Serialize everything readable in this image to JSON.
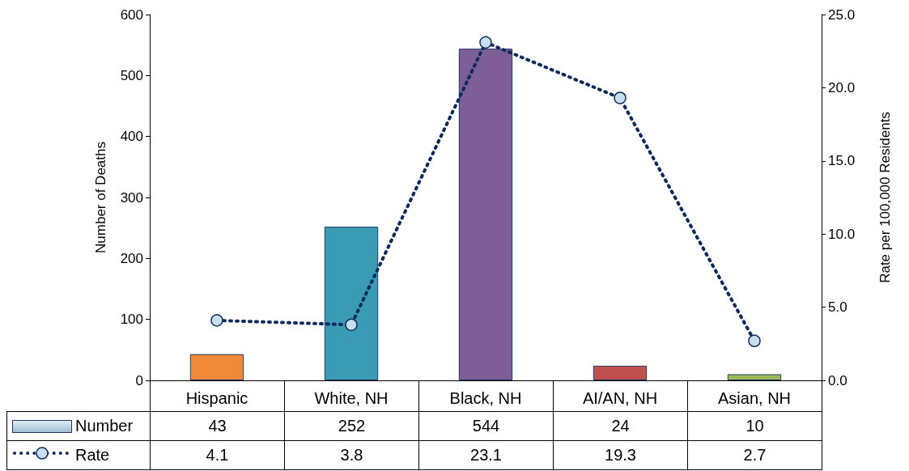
{
  "chart_data": {
    "type": "bar",
    "ylabel": "Number of Deaths",
    "y2label": "Rate per 100,000 Residents",
    "categories": [
      "Hispanic",
      "White, NH",
      "Black, NH",
      "AI/AN, NH",
      "Asian, NH"
    ],
    "series": [
      {
        "name": "Number",
        "colors": [
          "#f08a3a",
          "#3a9bb5",
          "#7d5e96",
          "#c0504d",
          "#9bbb59"
        ],
        "values": [
          43,
          252,
          544,
          24,
          10
        ]
      },
      {
        "name": "Rate",
        "type": "line",
        "axis": "y2",
        "color": "#0d2a5c",
        "values": [
          4.1,
          3.8,
          23.1,
          19.3,
          2.7
        ]
      }
    ],
    "ylim": [
      0,
      600
    ],
    "yticks": [
      0,
      100,
      200,
      300,
      400,
      500,
      600
    ],
    "y2lim": [
      0,
      25
    ],
    "y2ticks": [
      {
        "value": 0,
        "label": "0.0"
      },
      {
        "value": 5,
        "label": "5.0"
      },
      {
        "value": 10,
        "label": "10.0"
      },
      {
        "value": 15,
        "label": "15.0"
      },
      {
        "value": 20,
        "label": "20.0"
      },
      {
        "value": 25,
        "label": "25.0"
      }
    ],
    "grid": false,
    "legend": "bottom left",
    "data_labels": true,
    "marker": "circle",
    "line_style": "dotted"
  }
}
